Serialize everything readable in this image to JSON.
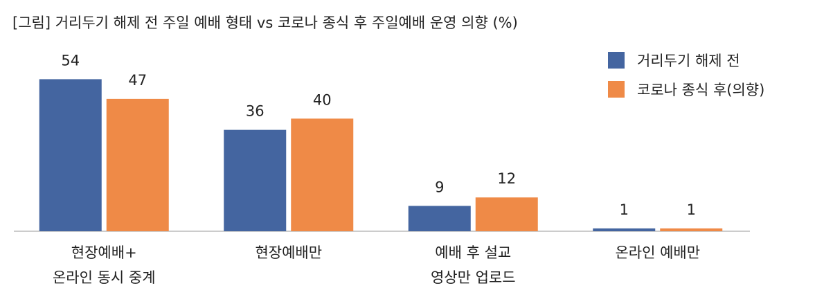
{
  "chart_data": {
    "type": "bar",
    "title": "[그림] 거리두기 해제 전 주일 예배 형태 vs 코로나 종식 후 주일예배 운영 의향 (%)",
    "categories": [
      "현장예배+\n온라인 동시 중계",
      "현장예배만",
      "예배 후 설교\n영상만 업로드",
      "온라인 예배만"
    ],
    "series": [
      {
        "name": "거리두기 해제 전",
        "color": "#4465a0",
        "values": [
          54,
          36,
          9,
          1
        ]
      },
      {
        "name": "코로나 종식 후(의향)",
        "color": "#ef8a47",
        "values": [
          47,
          40,
          12,
          1
        ]
      }
    ],
    "ylim": [
      0,
      60
    ],
    "legend": "top-right"
  }
}
